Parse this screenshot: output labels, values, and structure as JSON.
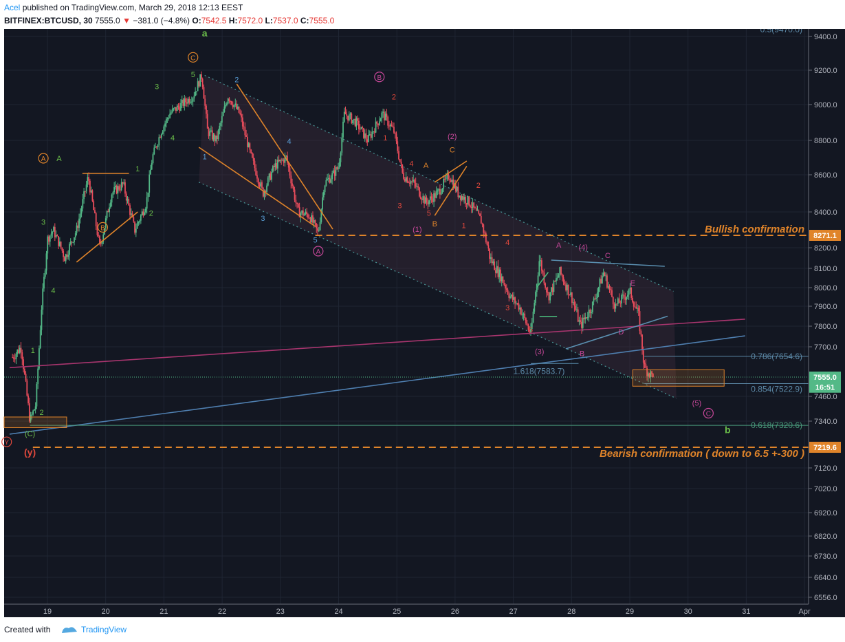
{
  "header": {
    "author": "Acel",
    "published_text": "published on TradingView.com, March 29, 2018 12:13 EEST",
    "symbol": "BITFINEX:BTCUSD, 30",
    "last": "7555.0",
    "change": "−381.0 (−4.8%)",
    "open_label": "O:",
    "open": "7542.5",
    "high_label": "H:",
    "high": "7572.0",
    "low_label": "L:",
    "low": "7537.0",
    "close_label": "C:",
    "close": "7555.0"
  },
  "footer": {
    "created_with": "Created with",
    "brand": "TradingView"
  },
  "colors": {
    "background": "#131722",
    "up": "#53b987",
    "down": "#eb4d5c",
    "orange": "#e0842a",
    "blue": "#4f7fb0",
    "magenta": "#b03a76",
    "green_label": "#6bbf4a"
  },
  "chart_data": {
    "type": "candlestick",
    "title": "",
    "x_tick_labels": [
      "19",
      "20",
      "21",
      "22",
      "23",
      "24",
      "25",
      "26",
      "27",
      "28",
      "29",
      "30",
      "31",
      "Apr"
    ],
    "y_tick_labels": [
      "9400.0",
      "9200.0",
      "9000.0",
      "8800.0",
      "8600.0",
      "8400.0",
      "8200.0",
      "8100.0",
      "8000.0",
      "7900.0",
      "7800.0",
      "7700.0",
      "7460.0",
      "7340.0",
      "7120.0",
      "7020.0",
      "6920.0",
      "6820.0",
      "6730.0",
      "6640.0",
      "6556.0"
    ],
    "price_badges": [
      {
        "text": "8271.1",
        "value": 8271.1,
        "color": "#e0842a"
      },
      {
        "text": "7555.0",
        "value": 7555.0,
        "color": "#53b987"
      },
      {
        "text": "16:51",
        "value": 7505,
        "color": "#53b987"
      },
      {
        "text": "7219.6",
        "value": 7219.6,
        "color": "#e0842a"
      }
    ],
    "top_partial_label": "0.5(9470.0)",
    "close_price": 7555.0,
    "price_path_days": [
      [
        18.4,
        7650
      ],
      [
        18.55,
        7700
      ],
      [
        18.7,
        7340
      ],
      [
        18.8,
        7420
      ],
      [
        18.9,
        7900
      ],
      [
        19.0,
        8250
      ],
      [
        19.1,
        8300
      ],
      [
        19.3,
        8150
      ],
      [
        19.5,
        8300
      ],
      [
        19.7,
        8590
      ],
      [
        19.9,
        8200
      ],
      [
        20.1,
        8500
      ],
      [
        20.3,
        8550
      ],
      [
        20.5,
        8300
      ],
      [
        20.7,
        8450
      ],
      [
        20.8,
        8700
      ],
      [
        20.95,
        8850
      ],
      [
        21.1,
        8950
      ],
      [
        21.3,
        9000
      ],
      [
        21.5,
        9050
      ],
      [
        21.65,
        9170
      ],
      [
        21.75,
        8850
      ],
      [
        21.9,
        8800
      ],
      [
        22.1,
        9050
      ],
      [
        22.3,
        8950
      ],
      [
        22.5,
        8700
      ],
      [
        22.7,
        8500
      ],
      [
        22.9,
        8650
      ],
      [
        23.1,
        8700
      ],
      [
        23.3,
        8400
      ],
      [
        23.5,
        8380
      ],
      [
        23.65,
        8280
      ],
      [
        23.75,
        8550
      ],
      [
        23.9,
        8600
      ],
      [
        24.0,
        8650
      ],
      [
        24.1,
        8950
      ],
      [
        24.3,
        8900
      ],
      [
        24.5,
        8800
      ],
      [
        24.75,
        8950
      ],
      [
        24.95,
        8850
      ],
      [
        25.1,
        8600
      ],
      [
        25.3,
        8550
      ],
      [
        25.5,
        8450
      ],
      [
        25.7,
        8500
      ],
      [
        25.9,
        8600
      ],
      [
        26.05,
        8500
      ],
      [
        26.25,
        8450
      ],
      [
        26.45,
        8350
      ],
      [
        26.6,
        8150
      ],
      [
        26.8,
        8050
      ],
      [
        26.95,
        7950
      ],
      [
        27.1,
        7900
      ],
      [
        27.3,
        7760
      ],
      [
        27.45,
        8150
      ],
      [
        27.6,
        7950
      ],
      [
        27.8,
        8080
      ],
      [
        28.0,
        7950
      ],
      [
        28.15,
        7800
      ],
      [
        28.35,
        7900
      ],
      [
        28.55,
        8080
      ],
      [
        28.75,
        7900
      ],
      [
        29.0,
        7980
      ],
      [
        29.15,
        7850
      ],
      [
        29.25,
        7600
      ],
      [
        29.4,
        7555
      ]
    ],
    "annotations": [
      {
        "text": "Bullish confirmation",
        "value": 8271.1,
        "color": "#e0842a"
      },
      {
        "text": "Bearish confirmation ( down to 6.5 +-300 )",
        "value": 7219.6,
        "color": "#e0842a"
      },
      {
        "text": "0.786(7654.6)",
        "value": 7654.6,
        "color": "#5d8aa8"
      },
      {
        "text": "0.854(7522.9)",
        "value": 7522.9,
        "color": "#5d8aa8"
      },
      {
        "text": "0.618(7320.6)",
        "value": 7320.6,
        "color": "#4a9a7c"
      },
      {
        "text": "1.618(7583.7)",
        "value": 7583.7,
        "color": "#5d8aa8"
      }
    ],
    "wave_labels": {
      "green_small": [
        "a",
        "b"
      ],
      "green": [
        "1",
        "2",
        "3",
        "4",
        "5",
        "3",
        "4",
        "1",
        "2",
        "(C)"
      ],
      "orange_circled": [
        "A",
        "B",
        "C"
      ],
      "orange": [
        "A",
        "B",
        "C"
      ],
      "red": [
        "(y)",
        "1",
        "2",
        "3",
        "4",
        "5",
        "4",
        "2",
        "1",
        "3",
        "5",
        "3",
        "4"
      ],
      "red_circled": [
        "Y"
      ],
      "blue": [
        "1",
        "2",
        "3",
        "4",
        "5"
      ],
      "magenta_circled": [
        "A",
        "B",
        "C"
      ],
      "magenta": [
        "(1)",
        "(2)",
        "(3)",
        "(4)",
        "(5)",
        "A",
        "B",
        "C",
        "D",
        "E"
      ]
    }
  }
}
